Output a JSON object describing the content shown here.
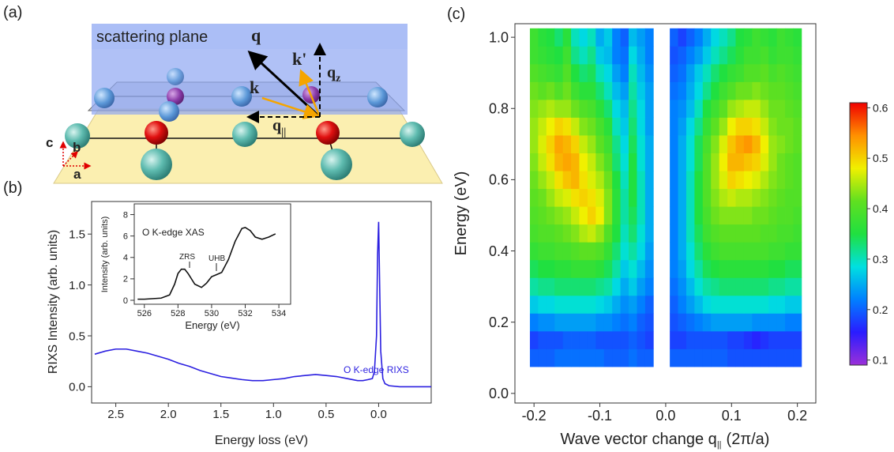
{
  "panel_labels": [
    "(a)",
    "(b)",
    "(c)"
  ],
  "diagram": {
    "scattering_plane": "scattering plane",
    "q": "q",
    "k_prime": "k'",
    "k": "k",
    "q_z": [
      "q",
      "z"
    ],
    "q_parallel": [
      "q",
      "||"
    ],
    "axes": [
      "c",
      "b",
      "a"
    ]
  },
  "chart_data": [
    {
      "type": "line",
      "x_label": "Energy loss (eV)",
      "y_label": "RIXS Intensity (arb. units)",
      "xlim": [
        2.73,
        -0.5
      ],
      "ylim": [
        -0.16,
        1.82
      ],
      "xticks": [
        2.5,
        {
          "value": 2,
          "label": "2.0"
        },
        1.5,
        {
          "value": 1,
          "label": "1.0"
        },
        0.5,
        {
          "value": 0,
          "label": "0.0"
        }
      ],
      "yticks": [
        {
          "value": 0,
          "label": "0.0"
        },
        0.5,
        {
          "value": 1,
          "label": "1.0"
        },
        1.5
      ],
      "x": [
        2.7,
        2.6,
        2.5,
        2.4,
        2.3,
        2.2,
        2.1,
        2.0,
        1.9,
        1.8,
        1.7,
        1.6,
        1.5,
        1.4,
        1.3,
        1.2,
        1.1,
        1.0,
        0.9,
        0.8,
        0.7,
        0.6,
        0.5,
        0.4,
        0.3,
        0.2,
        0.15,
        0.1,
        0.06,
        0.04,
        0.02,
        0.01,
        0.0,
        -0.02,
        -0.04,
        -0.06,
        -0.1,
        -0.2,
        -0.3,
        -0.4,
        -0.5
      ],
      "series": [
        {
          "name": "O K-edge RIXS",
          "color": "#2b1fe0",
          "values": [
            0.32,
            0.35,
            0.37,
            0.37,
            0.35,
            0.33,
            0.3,
            0.27,
            0.23,
            0.2,
            0.16,
            0.13,
            0.1,
            0.085,
            0.07,
            0.06,
            0.06,
            0.07,
            0.08,
            0.1,
            0.11,
            0.12,
            0.11,
            0.1,
            0.08,
            0.06,
            0.06,
            0.07,
            0.08,
            0.15,
            0.5,
            1.3,
            1.62,
            0.35,
            0.08,
            0.03,
            0.01,
            0.0,
            0.0,
            0.0,
            0.0
          ]
        }
      ]
    },
    {
      "type": "line",
      "x_label": "Energy (eV)",
      "y_label": "Intensity (arb. units)",
      "xlim": [
        525.4,
        534.7
      ],
      "ylim": [
        -0.37,
        9.0
      ],
      "xticks": [
        526,
        528,
        530,
        532,
        534
      ],
      "yticks": [
        0,
        2,
        4,
        6,
        8
      ],
      "x": [
        525.6,
        526,
        527,
        527.5,
        527.8,
        528,
        528.2,
        528.4,
        528.6,
        529,
        529.4,
        529.7,
        530,
        530.3,
        530.6,
        531,
        531.4,
        531.8,
        532,
        532.3,
        532.6,
        533,
        533.4,
        533.8
      ],
      "series": [
        {
          "name": "O K-edge XAS",
          "color": "#111111",
          "values": [
            0.1,
            0.1,
            0.2,
            0.5,
            1.5,
            2.5,
            2.9,
            2.9,
            2.5,
            1.5,
            1.2,
            1.6,
            2.2,
            2.4,
            2.6,
            3.8,
            5.5,
            6.7,
            6.8,
            6.5,
            5.9,
            5.7,
            5.9,
            6.2
          ]
        }
      ],
      "annotations": [
        "ZRS",
        "UHB"
      ]
    },
    {
      "type": "heatmap",
      "x_label": [
        "Wave vector change q",
        "||",
        "(2π/a)"
      ],
      "y_label": "Energy (eV)",
      "xlim": [
        -0.229,
        0.228
      ],
      "ylim": [
        -0.027,
        1.038
      ],
      "xticks": [
        -0.2,
        -0.1,
        {
          "value": 0,
          "label": "0.0"
        },
        0.1,
        0.2
      ],
      "yticks": [
        {
          "value": 0,
          "label": "0.0"
        },
        0.2,
        0.4,
        0.6,
        0.8,
        {
          "value": 1,
          "label": "1.0"
        }
      ],
      "clim": [
        0.09,
        0.61
      ],
      "cticks": [
        0.1,
        0.2,
        0.3,
        0.4,
        0.5,
        0.6
      ],
      "colormap": [
        "#9b30d9",
        "#2a1cff",
        "#0080ff",
        "#00e0e0",
        "#20e040",
        "#60e020",
        "#f0f000",
        "#ff9000",
        "#f00000"
      ],
      "x": [
        -0.2,
        -0.1875,
        -0.175,
        -0.1625,
        -0.15,
        -0.1375,
        -0.125,
        -0.1125,
        -0.1,
        -0.0875,
        -0.075,
        -0.0625,
        -0.05,
        -0.0375,
        -0.025,
        0.0125,
        0.025,
        0.0375,
        0.05,
        0.0625,
        0.075,
        0.0875,
        0.1,
        0.1125,
        0.125,
        0.1375,
        0.15,
        0.1625,
        0.175,
        0.1875,
        0.2
      ],
      "y": [
        0.1,
        0.15,
        0.2,
        0.25,
        0.3,
        0.35,
        0.4,
        0.45,
        0.5,
        0.55,
        0.6,
        0.65,
        0.7,
        0.75,
        0.8,
        0.85,
        0.9,
        0.95,
        1.0
      ],
      "values": [
        [
          0.2,
          0.2,
          0.2,
          0.21,
          0.21,
          0.21,
          0.21,
          0.21,
          0.21,
          0.2,
          0.2,
          0.2,
          0.21,
          0.2,
          0.2,
          0.2,
          0.2,
          0.2,
          0.2,
          0.2,
          0.2,
          0.2,
          0.19,
          0.19,
          0.19,
          0.19,
          0.19,
          0.19,
          0.19,
          0.19,
          0.19
        ],
        [
          0.18,
          0.19,
          0.19,
          0.19,
          0.2,
          0.2,
          0.2,
          0.2,
          0.19,
          0.19,
          0.19,
          0.19,
          0.2,
          0.19,
          0.18,
          0.18,
          0.18,
          0.19,
          0.19,
          0.19,
          0.19,
          0.19,
          0.18,
          0.18,
          0.17,
          0.16,
          0.17,
          0.18,
          0.18,
          0.18,
          0.18
        ],
        [
          0.22,
          0.23,
          0.23,
          0.24,
          0.24,
          0.24,
          0.24,
          0.24,
          0.23,
          0.23,
          0.22,
          0.21,
          0.22,
          0.2,
          0.19,
          0.19,
          0.2,
          0.21,
          0.22,
          0.23,
          0.24,
          0.24,
          0.24,
          0.24,
          0.24,
          0.23,
          0.23,
          0.23,
          0.23,
          0.22,
          0.22
        ],
        [
          0.27,
          0.28,
          0.28,
          0.29,
          0.29,
          0.29,
          0.29,
          0.29,
          0.28,
          0.27,
          0.25,
          0.23,
          0.24,
          0.22,
          0.2,
          0.2,
          0.22,
          0.24,
          0.26,
          0.28,
          0.29,
          0.29,
          0.29,
          0.29,
          0.29,
          0.29,
          0.29,
          0.28,
          0.28,
          0.27,
          0.27
        ],
        [
          0.31,
          0.32,
          0.32,
          0.33,
          0.33,
          0.33,
          0.33,
          0.33,
          0.32,
          0.31,
          0.28,
          0.25,
          0.27,
          0.24,
          0.22,
          0.21,
          0.23,
          0.26,
          0.29,
          0.31,
          0.32,
          0.33,
          0.33,
          0.33,
          0.33,
          0.33,
          0.33,
          0.32,
          0.32,
          0.31,
          0.31
        ],
        [
          0.34,
          0.35,
          0.35,
          0.36,
          0.36,
          0.37,
          0.37,
          0.37,
          0.36,
          0.34,
          0.31,
          0.27,
          0.29,
          0.26,
          0.23,
          0.22,
          0.24,
          0.28,
          0.31,
          0.34,
          0.35,
          0.36,
          0.36,
          0.36,
          0.36,
          0.36,
          0.36,
          0.35,
          0.35,
          0.34,
          0.34
        ],
        [
          0.37,
          0.38,
          0.38,
          0.39,
          0.39,
          0.4,
          0.41,
          0.41,
          0.4,
          0.37,
          0.33,
          0.29,
          0.31,
          0.28,
          0.24,
          0.22,
          0.25,
          0.29,
          0.33,
          0.36,
          0.38,
          0.39,
          0.39,
          0.39,
          0.39,
          0.39,
          0.39,
          0.38,
          0.38,
          0.37,
          0.37
        ],
        [
          0.39,
          0.4,
          0.4,
          0.41,
          0.42,
          0.43,
          0.45,
          0.46,
          0.44,
          0.4,
          0.35,
          0.3,
          0.33,
          0.29,
          0.25,
          0.22,
          0.25,
          0.3,
          0.34,
          0.38,
          0.4,
          0.41,
          0.41,
          0.41,
          0.41,
          0.41,
          0.4,
          0.4,
          0.39,
          0.39,
          0.38
        ],
        [
          0.4,
          0.41,
          0.42,
          0.43,
          0.44,
          0.46,
          0.48,
          0.5,
          0.48,
          0.43,
          0.36,
          0.31,
          0.34,
          0.3,
          0.25,
          0.22,
          0.25,
          0.3,
          0.35,
          0.39,
          0.42,
          0.43,
          0.43,
          0.43,
          0.43,
          0.42,
          0.42,
          0.41,
          0.4,
          0.4,
          0.39
        ],
        [
          0.41,
          0.42,
          0.44,
          0.46,
          0.47,
          0.49,
          0.5,
          0.49,
          0.47,
          0.43,
          0.36,
          0.31,
          0.35,
          0.3,
          0.25,
          0.22,
          0.25,
          0.3,
          0.35,
          0.4,
          0.43,
          0.45,
          0.46,
          0.45,
          0.45,
          0.44,
          0.43,
          0.42,
          0.41,
          0.4,
          0.4
        ],
        [
          0.42,
          0.44,
          0.46,
          0.49,
          0.51,
          0.52,
          0.49,
          0.47,
          0.45,
          0.42,
          0.35,
          0.3,
          0.35,
          0.3,
          0.25,
          0.22,
          0.25,
          0.3,
          0.35,
          0.4,
          0.44,
          0.47,
          0.5,
          0.49,
          0.48,
          0.47,
          0.45,
          0.43,
          0.42,
          0.41,
          0.4
        ],
        [
          0.43,
          0.46,
          0.49,
          0.52,
          0.53,
          0.52,
          0.48,
          0.46,
          0.43,
          0.4,
          0.33,
          0.29,
          0.35,
          0.29,
          0.25,
          0.22,
          0.25,
          0.29,
          0.34,
          0.4,
          0.44,
          0.48,
          0.52,
          0.52,
          0.51,
          0.5,
          0.47,
          0.44,
          0.42,
          0.41,
          0.4
        ],
        [
          0.44,
          0.47,
          0.5,
          0.53,
          0.52,
          0.5,
          0.46,
          0.44,
          0.41,
          0.38,
          0.32,
          0.28,
          0.34,
          0.29,
          0.25,
          0.22,
          0.25,
          0.29,
          0.34,
          0.39,
          0.43,
          0.47,
          0.51,
          0.53,
          0.54,
          0.52,
          0.48,
          0.44,
          0.43,
          0.42,
          0.41
        ],
        [
          0.44,
          0.46,
          0.48,
          0.5,
          0.49,
          0.46,
          0.43,
          0.42,
          0.39,
          0.36,
          0.3,
          0.27,
          0.33,
          0.28,
          0.24,
          0.22,
          0.24,
          0.28,
          0.32,
          0.37,
          0.41,
          0.44,
          0.48,
          0.5,
          0.5,
          0.49,
          0.46,
          0.43,
          0.42,
          0.42,
          0.41
        ],
        [
          0.43,
          0.44,
          0.45,
          0.44,
          0.44,
          0.42,
          0.4,
          0.39,
          0.36,
          0.33,
          0.28,
          0.26,
          0.32,
          0.28,
          0.24,
          0.22,
          0.23,
          0.26,
          0.3,
          0.35,
          0.38,
          0.41,
          0.44,
          0.45,
          0.46,
          0.46,
          0.44,
          0.42,
          0.42,
          0.41,
          0.4
        ],
        [
          0.42,
          0.41,
          0.42,
          0.4,
          0.42,
          0.38,
          0.36,
          0.36,
          0.33,
          0.3,
          0.26,
          0.24,
          0.31,
          0.27,
          0.24,
          0.21,
          0.22,
          0.25,
          0.28,
          0.32,
          0.35,
          0.38,
          0.4,
          0.42,
          0.42,
          0.43,
          0.42,
          0.41,
          0.41,
          0.4,
          0.39
        ],
        [
          0.4,
          0.39,
          0.38,
          0.37,
          0.4,
          0.35,
          0.33,
          0.34,
          0.3,
          0.28,
          0.24,
          0.22,
          0.3,
          0.26,
          0.23,
          0.2,
          0.21,
          0.24,
          0.27,
          0.3,
          0.33,
          0.35,
          0.37,
          0.38,
          0.4,
          0.4,
          0.41,
          0.39,
          0.4,
          0.39,
          0.38
        ],
        [
          0.38,
          0.37,
          0.36,
          0.35,
          0.38,
          0.32,
          0.3,
          0.32,
          0.27,
          0.26,
          0.22,
          0.21,
          0.28,
          0.25,
          0.22,
          0.19,
          0.2,
          0.22,
          0.24,
          0.27,
          0.3,
          0.32,
          0.34,
          0.36,
          0.38,
          0.38,
          0.39,
          0.37,
          0.38,
          0.38,
          0.37
        ],
        [
          0.38,
          0.36,
          0.35,
          0.33,
          0.36,
          0.3,
          0.28,
          0.3,
          0.25,
          0.27,
          0.22,
          0.2,
          0.26,
          0.24,
          0.22,
          0.2,
          0.18,
          0.2,
          0.22,
          0.25,
          0.28,
          0.3,
          0.32,
          0.35,
          0.36,
          0.38,
          0.37,
          0.36,
          0.38,
          0.37,
          0.36
        ]
      ]
    }
  ]
}
